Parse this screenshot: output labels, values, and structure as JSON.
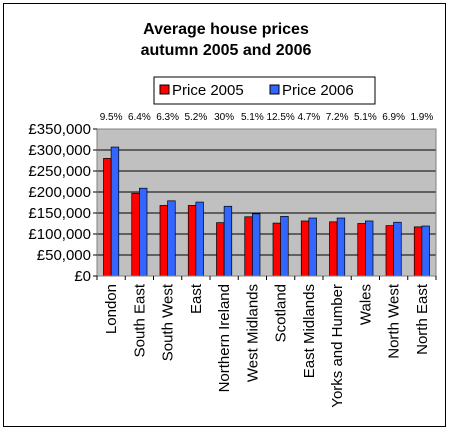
{
  "chart_data": {
    "type": "bar",
    "title": [
      "Average house prices",
      "autumn 2005 and 2006"
    ],
    "categories": [
      "London",
      "South East",
      "South West",
      "East",
      "Northern Ireland",
      "West Midlands",
      "Scotland",
      "East Midlands",
      "Yorks and Humber",
      "Wales",
      "North West",
      "North East"
    ],
    "series": [
      {
        "name": "Price 2005",
        "color": "#ff0000",
        "values": [
          280000,
          197000,
          168000,
          168000,
          127000,
          141000,
          126000,
          131000,
          129000,
          125000,
          120000,
          117000
        ]
      },
      {
        "name": "Price 2006",
        "color": "#3366ff",
        "values": [
          307000,
          209000,
          179000,
          176000,
          166000,
          148000,
          142000,
          138000,
          138000,
          131000,
          128000,
          119000
        ]
      }
    ],
    "changes": [
      "9.5%",
      "6.4%",
      "6.3%",
      "5.2%",
      "30%",
      "5.1%",
      "12.5%",
      "4.7%",
      "7.2%",
      "5.1%",
      "6.9%",
      "1.9%"
    ],
    "y_ticks": [
      "£0",
      "£50,000",
      "£100,000",
      "£150,000",
      "£200,000",
      "£250,000",
      "£300,000",
      "£350,000"
    ],
    "ylim": [
      0,
      350000
    ],
    "grid": true,
    "legend_position": "top",
    "plot_background": "#c0c0c0"
  }
}
